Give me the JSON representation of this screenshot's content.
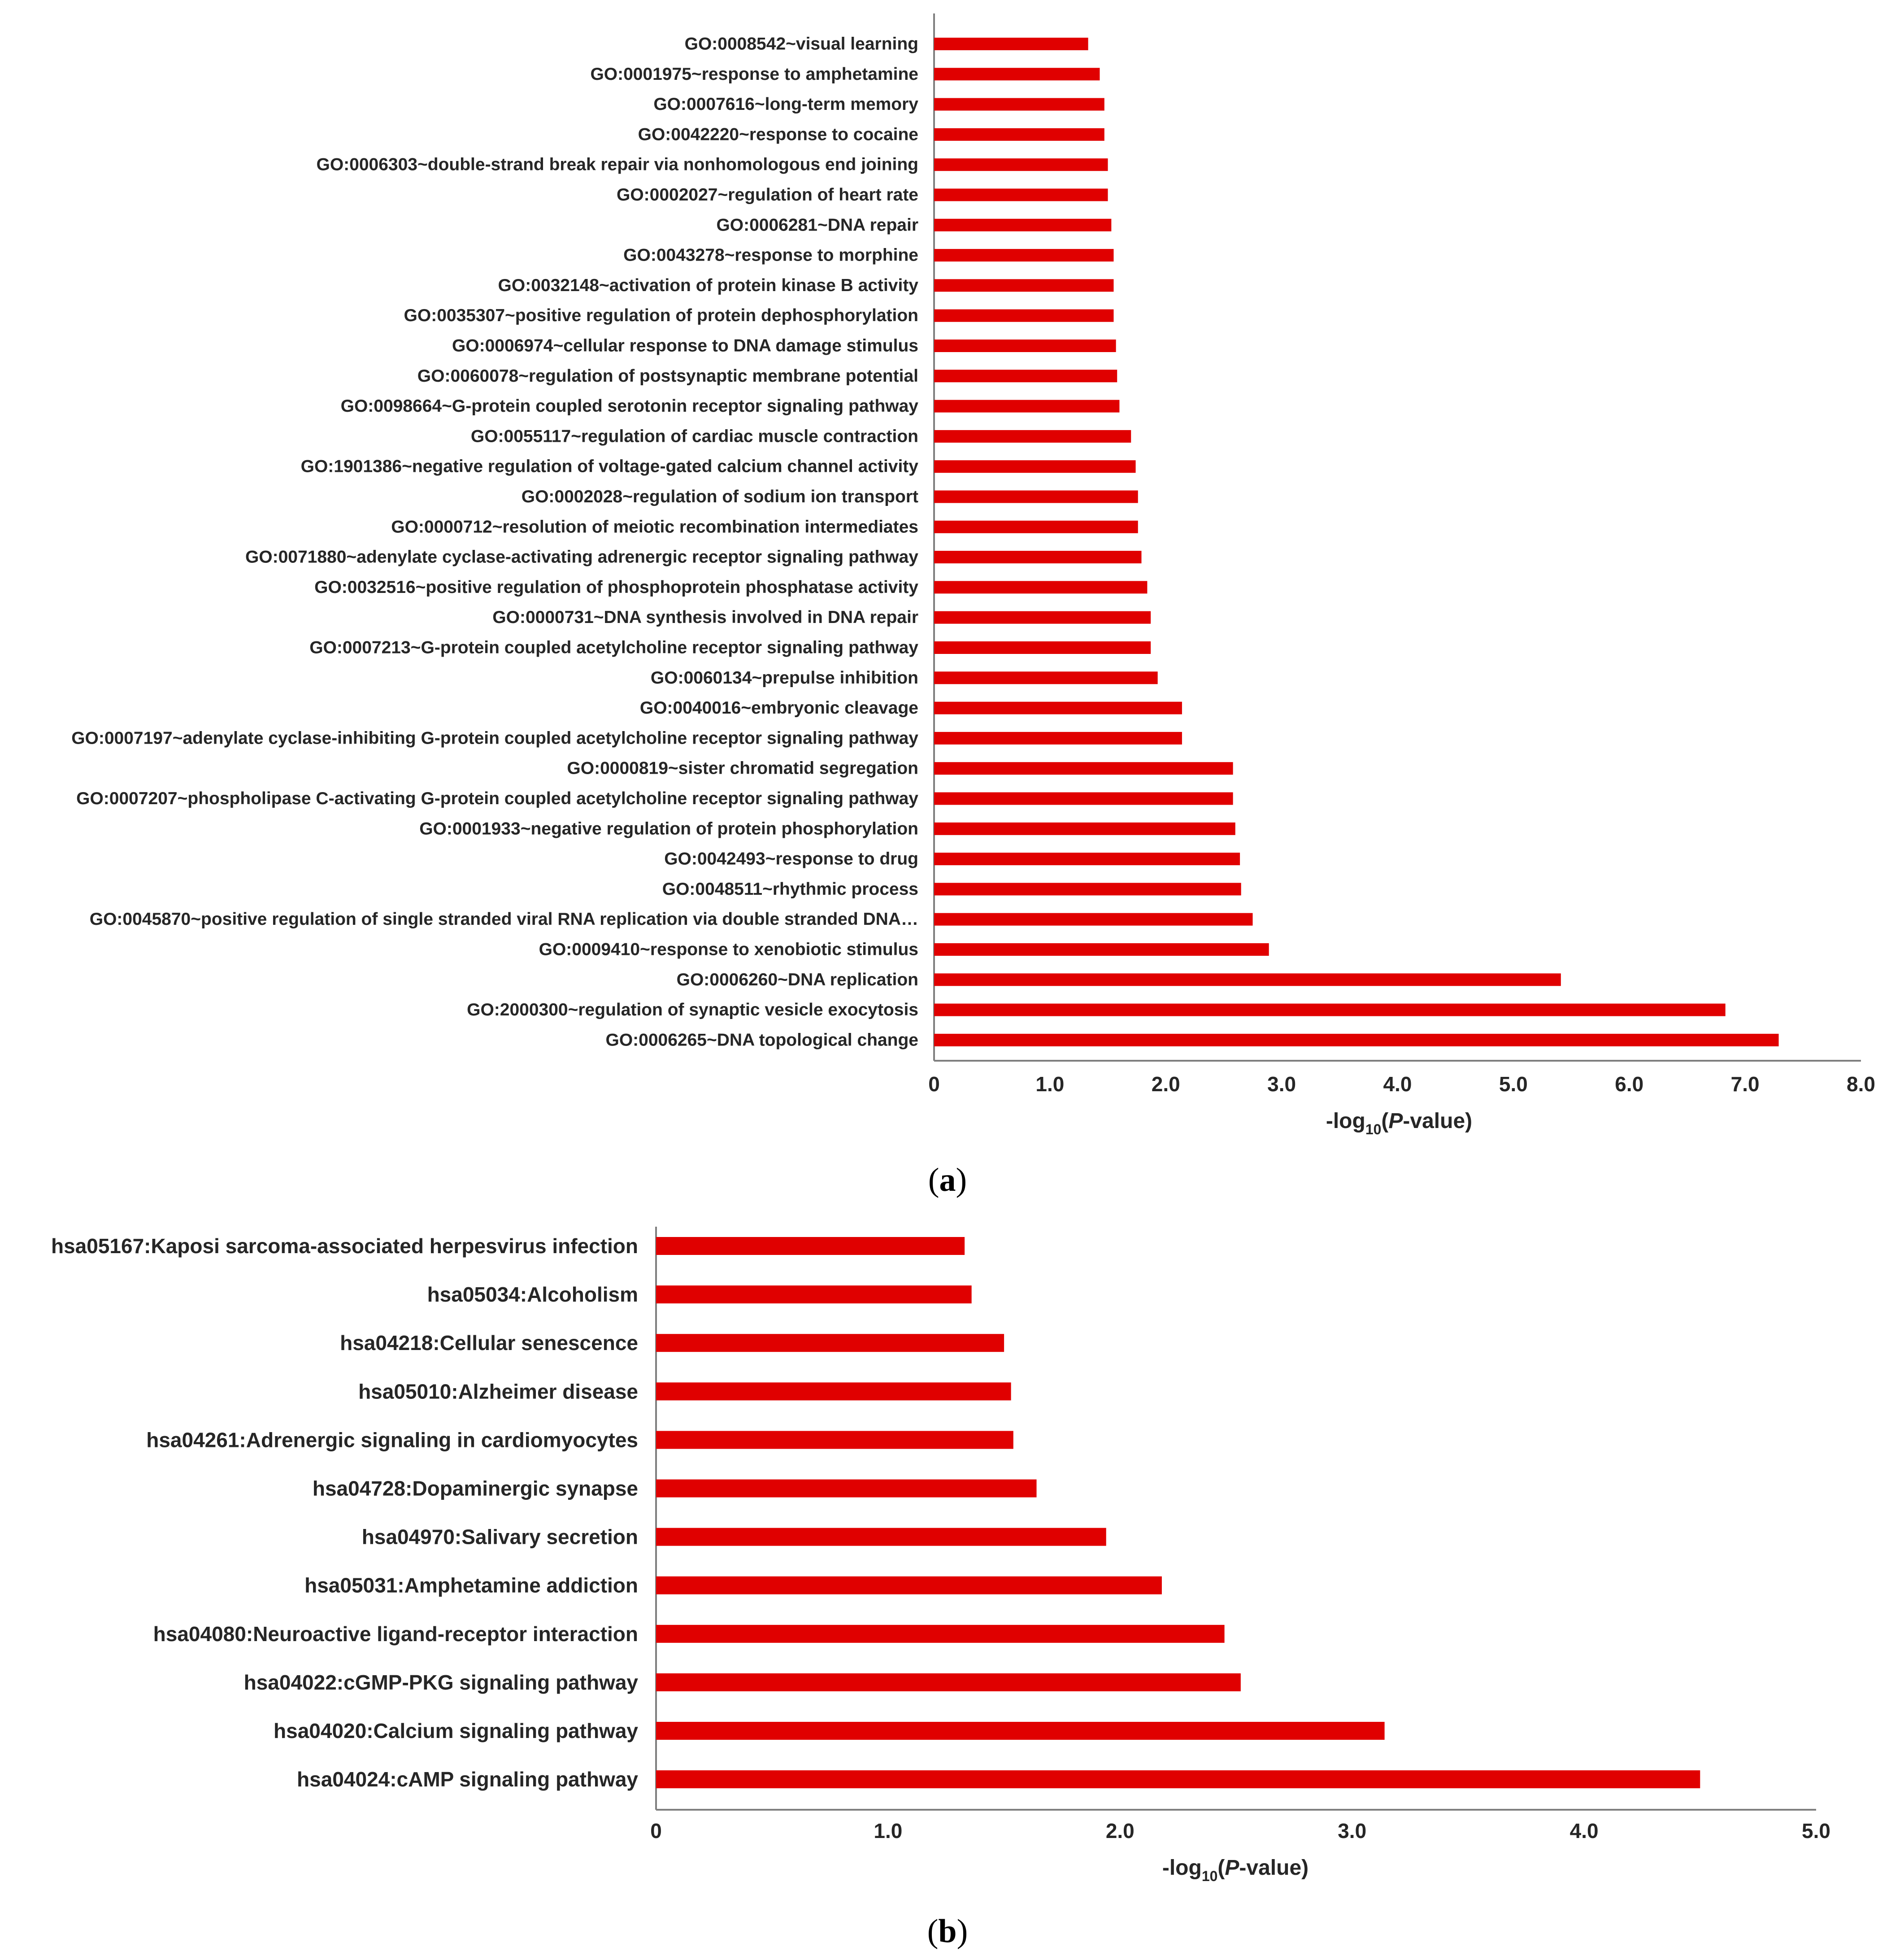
{
  "colors": {
    "bar": "#E00000",
    "axis": "#7F7F7F",
    "text": "#262626"
  },
  "chart_data": [
    {
      "type": "bar",
      "orientation": "horizontal",
      "panel_label": "(a)",
      "panel_letter": "a",
      "xlabel": {
        "prefix": "-log",
        "sub": "10",
        "open": "(",
        "italic": "P",
        "rest": "-value)"
      },
      "xlim": [
        0,
        8
      ],
      "xticks": [
        "0",
        "1.0",
        "2.0",
        "3.0",
        "4.0",
        "5.0",
        "6.0",
        "7.0",
        "8.0"
      ],
      "categories": [
        "GO:0008542~visual learning",
        "GO:0001975~response to amphetamine",
        "GO:0007616~long-term memory",
        "GO:0042220~response to cocaine",
        "GO:0006303~double-strand break repair via nonhomologous end joining",
        "GO:0002027~regulation of heart rate",
        "GO:0006281~DNA repair",
        "GO:0043278~response to morphine",
        "GO:0032148~activation of protein kinase B activity",
        "GO:0035307~positive regulation of protein dephosphorylation",
        "GO:0006974~cellular response to DNA damage stimulus",
        "GO:0060078~regulation of postsynaptic membrane potential",
        "GO:0098664~G-protein coupled serotonin receptor signaling pathway",
        "GO:0055117~regulation of cardiac muscle contraction",
        "GO:1901386~negative regulation of voltage-gated calcium channel activity",
        "GO:0002028~regulation of sodium ion transport",
        "GO:0000712~resolution of meiotic recombination intermediates",
        "GO:0071880~adenylate cyclase-activating adrenergic receptor signaling pathway",
        "GO:0032516~positive regulation of phosphoprotein phosphatase activity",
        "GO:0000731~DNA synthesis involved in DNA repair",
        "GO:0007213~G-protein coupled acetylcholine receptor signaling pathway",
        "GO:0060134~prepulse inhibition",
        "GO:0040016~embryonic cleavage",
        "GO:0007197~adenylate cyclase-inhibiting G-protein coupled acetylcholine receptor signaling pathway",
        "GO:0000819~sister chromatid segregation",
        "GO:0007207~phospholipase C-activating G-protein coupled acetylcholine receptor signaling pathway",
        "GO:0001933~negative regulation of protein phosphorylation",
        "GO:0042493~response to drug",
        "GO:0048511~rhythmic process",
        "GO:0045870~positive regulation of single stranded viral RNA replication via double stranded DNA…",
        "GO:0009410~response to xenobiotic stimulus",
        "GO:0006260~DNA replication",
        "GO:2000300~regulation of synaptic vesicle exocytosis",
        "GO:0006265~DNA topological change"
      ],
      "values": [
        1.33,
        1.43,
        1.47,
        1.47,
        1.5,
        1.5,
        1.53,
        1.55,
        1.55,
        1.55,
        1.57,
        1.58,
        1.6,
        1.7,
        1.74,
        1.76,
        1.76,
        1.79,
        1.84,
        1.87,
        1.87,
        1.93,
        2.14,
        2.14,
        2.58,
        2.58,
        2.6,
        2.64,
        2.65,
        2.75,
        2.89,
        5.41,
        6.83,
        7.29
      ]
    },
    {
      "type": "bar",
      "orientation": "horizontal",
      "panel_label": "(b)",
      "panel_letter": "b",
      "xlabel": {
        "prefix": "-log",
        "sub": "10",
        "open": "(",
        "italic": "P",
        "rest": "-value)"
      },
      "xlim": [
        0,
        5
      ],
      "xticks": [
        "0",
        "1.0",
        "2.0",
        "3.0",
        "4.0",
        "5.0"
      ],
      "categories": [
        "hsa05167:Kaposi sarcoma-associated herpesvirus infection",
        "hsa05034:Alcoholism",
        "hsa04218:Cellular senescence",
        "hsa05010:Alzheimer disease",
        "hsa04261:Adrenergic signaling in cardiomyocytes",
        "hsa04728:Dopaminergic synapse",
        "hsa04970:Salivary secretion",
        "hsa05031:Amphetamine addiction",
        "hsa04080:Neuroactive ligand-receptor interaction",
        "hsa04022:cGMP-PKG signaling pathway",
        "hsa04020:Calcium signaling pathway",
        "hsa04024:cAMP signaling pathway"
      ],
      "values": [
        1.33,
        1.36,
        1.5,
        1.53,
        1.54,
        1.64,
        1.94,
        2.18,
        2.45,
        2.52,
        3.14,
        4.5
      ]
    }
  ]
}
